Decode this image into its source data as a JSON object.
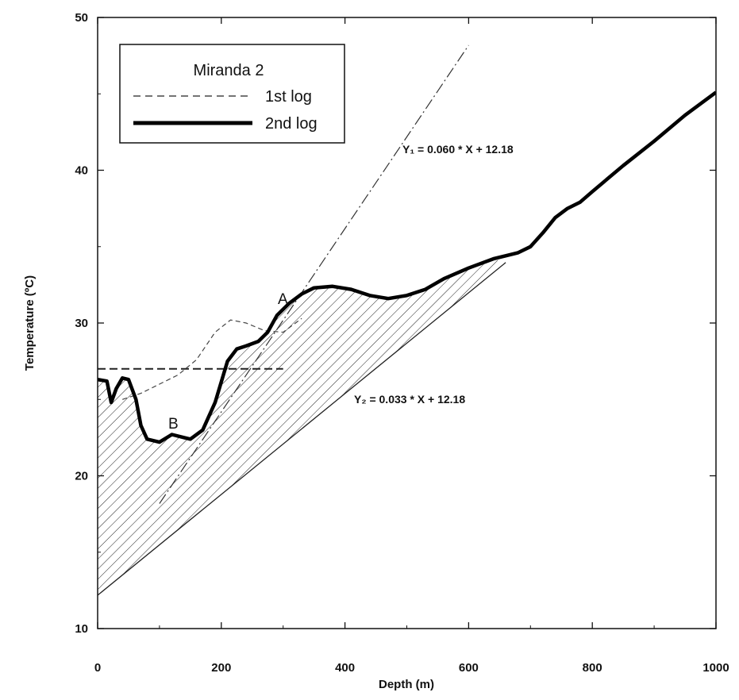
{
  "chart_data": {
    "type": "line",
    "title": "",
    "xlabel": "Depth (m)",
    "ylabel": "Temperature (ºC)",
    "xlim": [
      0,
      1000
    ],
    "ylim": [
      10,
      50
    ],
    "xticks": [
      0,
      200,
      400,
      600,
      800,
      1000
    ],
    "yticks": [
      10,
      20,
      30,
      40,
      50
    ],
    "grid": false,
    "legend": {
      "title": "Miranda 2",
      "position": "top-left",
      "entries": [
        {
          "name": "1st log",
          "style": "dashed"
        },
        {
          "name": "2nd log",
          "style": "solid-thick"
        }
      ]
    },
    "series": [
      {
        "name": "1st log",
        "style": "dashed",
        "points": [
          [
            0,
            27.0
          ],
          [
            40,
            27.0
          ],
          [
            80,
            27.0
          ],
          [
            120,
            27.0
          ],
          [
            160,
            27.0
          ],
          [
            200,
            27.0
          ],
          [
            240,
            27.0
          ],
          [
            300,
            27.0
          ]
        ],
        "profile": [
          [
            40,
            25.0
          ],
          [
            70,
            25.4
          ],
          [
            100,
            26.0
          ],
          [
            130,
            26.6
          ],
          [
            160,
            27.6
          ],
          [
            190,
            29.4
          ],
          [
            215,
            30.2
          ],
          [
            240,
            30.0
          ],
          [
            270,
            29.5
          ],
          [
            300,
            29.4
          ],
          [
            330,
            30.3
          ]
        ]
      },
      {
        "name": "2nd log",
        "style": "solid-thick",
        "points": [
          [
            0,
            26.3
          ],
          [
            15,
            26.2
          ],
          [
            22,
            24.8
          ],
          [
            30,
            25.7
          ],
          [
            40,
            26.4
          ],
          [
            50,
            26.3
          ],
          [
            62,
            25.0
          ],
          [
            70,
            23.3
          ],
          [
            80,
            22.4
          ],
          [
            100,
            22.2
          ],
          [
            120,
            22.7
          ],
          [
            140,
            22.5
          ],
          [
            150,
            22.4
          ],
          [
            170,
            23.0
          ],
          [
            190,
            24.8
          ],
          [
            210,
            27.5
          ],
          [
            225,
            28.3
          ],
          [
            240,
            28.5
          ],
          [
            260,
            28.8
          ],
          [
            275,
            29.4
          ],
          [
            290,
            30.5
          ],
          [
            310,
            31.3
          ],
          [
            330,
            31.9
          ],
          [
            350,
            32.3
          ],
          [
            380,
            32.4
          ],
          [
            410,
            32.2
          ],
          [
            440,
            31.8
          ],
          [
            470,
            31.6
          ],
          [
            500,
            31.8
          ],
          [
            530,
            32.2
          ],
          [
            560,
            32.9
          ],
          [
            600,
            33.6
          ],
          [
            640,
            34.2
          ],
          [
            680,
            34.6
          ],
          [
            700,
            35.0
          ],
          [
            720,
            35.9
          ],
          [
            740,
            36.9
          ],
          [
            760,
            37.5
          ],
          [
            780,
            37.9
          ],
          [
            800,
            38.6
          ],
          [
            850,
            40.3
          ],
          [
            900,
            41.9
          ],
          [
            950,
            43.6
          ],
          [
            1000,
            45.1
          ]
        ]
      },
      {
        "name": "Y1 fit",
        "style": "dash-dot",
        "points": [
          [
            100,
            18.18
          ],
          [
            200,
            24.18
          ],
          [
            300,
            30.18
          ],
          [
            400,
            36.18
          ],
          [
            500,
            42.18
          ],
          [
            600,
            48.18
          ]
        ]
      },
      {
        "name": "Y2 fit",
        "style": "solid-thin",
        "points": [
          [
            0,
            12.18
          ],
          [
            200,
            18.78
          ],
          [
            400,
            25.38
          ],
          [
            600,
            31.98
          ],
          [
            660,
            33.96
          ]
        ]
      }
    ],
    "shaded_region": {
      "between": [
        "2nd log",
        "Y2 fit"
      ],
      "x_range": [
        0,
        660
      ],
      "pattern": "diagonal-hatch"
    },
    "annotations": [
      {
        "text": "Y₁ = 0.060 * X + 12.18",
        "x": 490,
        "y": 41.5
      },
      {
        "text": "Y₂ = 0.033 * X + 12.18",
        "x": 420,
        "y": 25.3
      },
      {
        "text": "A",
        "x": 305,
        "y": 32.0
      },
      {
        "text": "B",
        "x": 118,
        "y": 23.5
      }
    ]
  }
}
